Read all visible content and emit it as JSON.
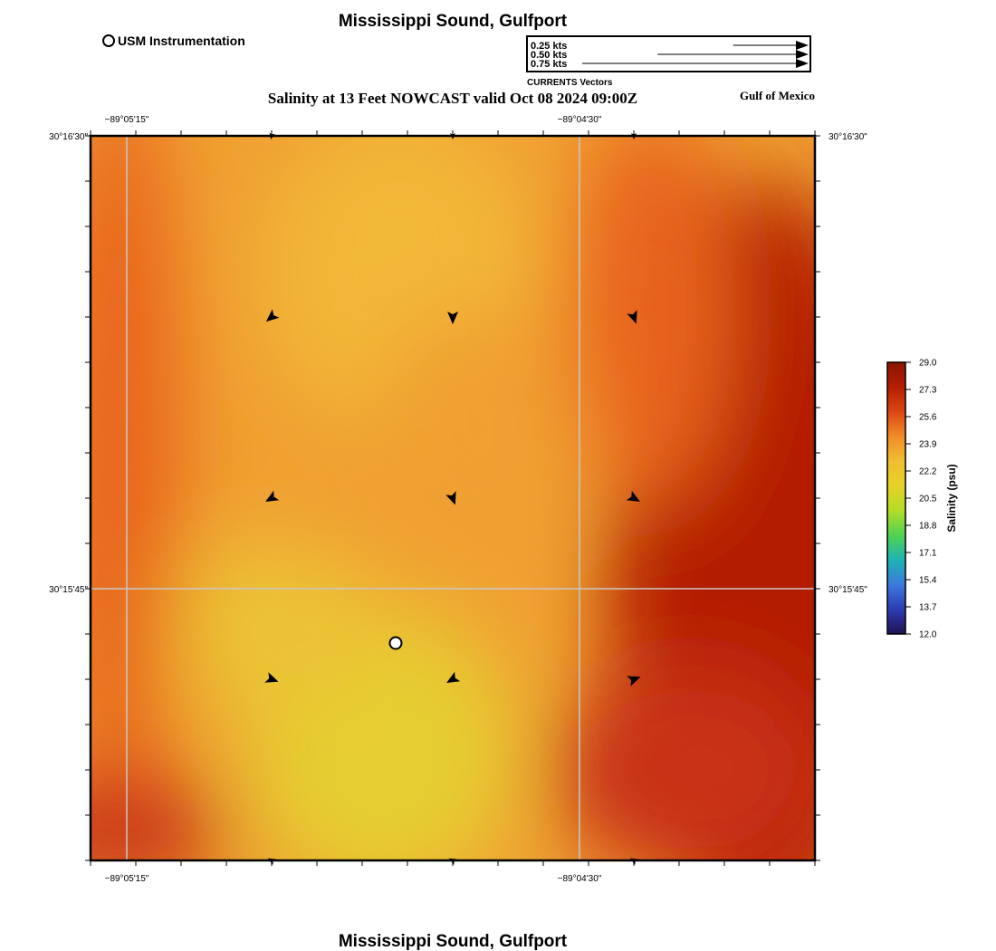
{
  "map": {
    "title": "Mississippi Sound, Gulfport",
    "subtitle": "Salinity at 13 Feet NOWCAST valid Oct 08 2024 09:00Z",
    "region_label": "Gulf of Mexico",
    "footer_title": "Mississippi Sound, Gulfport",
    "station_legend": "USM Instrumentation",
    "longitude_labels": [
      "−89°05'15\"",
      "−89°04'30\""
    ],
    "latitude_labels": [
      "30°16'30\"",
      "30°15'45\""
    ]
  },
  "vector_legend": {
    "title": "CURRENTS Vectors",
    "entries": [
      {
        "label": "0.25 kts",
        "speed": 0.25
      },
      {
        "label": "0.50 kts",
        "speed": 0.5
      },
      {
        "label": "0.75 kts",
        "speed": 0.75
      }
    ]
  },
  "colorbar": {
    "title": "Salinity (psu)",
    "ticks": [
      "29.0",
      "27.3",
      "25.6",
      "23.9",
      "22.2",
      "20.5",
      "18.8",
      "17.1",
      "15.4",
      "13.7",
      "12.0"
    ],
    "stops": [
      "#8c1500",
      "#b41e00",
      "#dc4614",
      "#f08c28",
      "#f0be32",
      "#e6d228",
      "#b4dc28",
      "#50d250",
      "#1eb4b4",
      "#3c78dc",
      "#2d3cb4",
      "#1e1450"
    ]
  },
  "field_colors": {
    "light": "#e6ce32",
    "mid": "#f0a032",
    "orange": "#e8641e",
    "dark": "#b41e00"
  },
  "vectors": [
    {
      "id": "r1c1",
      "angle": 100,
      "length": 0.5
    },
    {
      "id": "r1c2",
      "angle": 90,
      "length": 0.5
    },
    {
      "id": "r1c3",
      "angle": 90,
      "length": 0.5
    },
    {
      "id": "r2c1",
      "angle": 140,
      "length": 1
    },
    {
      "id": "r2c2",
      "angle": 90,
      "length": 1
    },
    {
      "id": "r2c3",
      "angle": 70,
      "length": 1
    },
    {
      "id": "r3c1",
      "angle": 150,
      "length": 1
    },
    {
      "id": "r3c2",
      "angle": 70,
      "length": 1
    },
    {
      "id": "r3c3",
      "angle": 30,
      "length": 1
    },
    {
      "id": "r4c1",
      "angle": 20,
      "length": 1
    },
    {
      "id": "r4c2",
      "angle": 150,
      "length": 1
    },
    {
      "id": "r4c3",
      "angle": -20,
      "length": 1
    },
    {
      "id": "r5c1",
      "angle": -150,
      "length": 0.6
    },
    {
      "id": "r5c2",
      "angle": -150,
      "length": 0.6
    },
    {
      "id": "r5c3",
      "angle": -150,
      "length": 0.6
    }
  ]
}
